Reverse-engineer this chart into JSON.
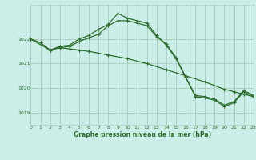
{
  "title": "Graphe pression niveau de la mer (hPa)",
  "background_color": "#cceee8",
  "grid_color": "#aaccbb",
  "line_color": "#2d6e2d",
  "xlim": [
    0,
    23
  ],
  "ylim": [
    1018.5,
    1023.4
  ],
  "yticks": [
    1019,
    1020,
    1021,
    1022
  ],
  "xticks": [
    0,
    1,
    2,
    3,
    4,
    5,
    6,
    7,
    8,
    9,
    10,
    11,
    12,
    13,
    14,
    15,
    16,
    17,
    18,
    19,
    20,
    21,
    22,
    23
  ],
  "series1_x": [
    0,
    1,
    2,
    3,
    4,
    5,
    6,
    7,
    8,
    9,
    10,
    11,
    12,
    13,
    14,
    15,
    16,
    17,
    18,
    19,
    20,
    21,
    22,
    23
  ],
  "series1_y": [
    1022.0,
    1021.85,
    1021.55,
    1021.7,
    1021.75,
    1022.0,
    1022.15,
    1022.4,
    1022.6,
    1023.05,
    1022.85,
    1022.75,
    1022.65,
    1022.15,
    1021.75,
    1021.2,
    1020.45,
    1019.7,
    1019.65,
    1019.55,
    1019.3,
    1019.45,
    1019.9,
    1019.7
  ],
  "series2_x": [
    0,
    1,
    2,
    3,
    4,
    5,
    6,
    8,
    10,
    12,
    14,
    16,
    18,
    20,
    21,
    22,
    23
  ],
  "series2_y": [
    1022.0,
    1021.85,
    1021.55,
    1021.65,
    1021.6,
    1021.55,
    1021.5,
    1021.35,
    1021.2,
    1021.0,
    1020.75,
    1020.5,
    1020.25,
    1019.95,
    1019.85,
    1019.75,
    1019.65
  ],
  "series3_x": [
    0,
    2,
    3,
    4,
    5,
    6,
    7,
    8,
    9,
    10,
    11,
    12,
    13,
    14,
    15,
    16,
    17,
    18,
    19,
    20,
    21,
    22,
    23
  ],
  "series3_y": [
    1022.0,
    1021.55,
    1021.65,
    1021.7,
    1021.9,
    1022.05,
    1022.2,
    1022.55,
    1022.75,
    1022.75,
    1022.65,
    1022.55,
    1022.1,
    1021.8,
    1021.25,
    1020.45,
    1019.65,
    1019.6,
    1019.5,
    1019.25,
    1019.4,
    1019.85,
    1019.65
  ]
}
